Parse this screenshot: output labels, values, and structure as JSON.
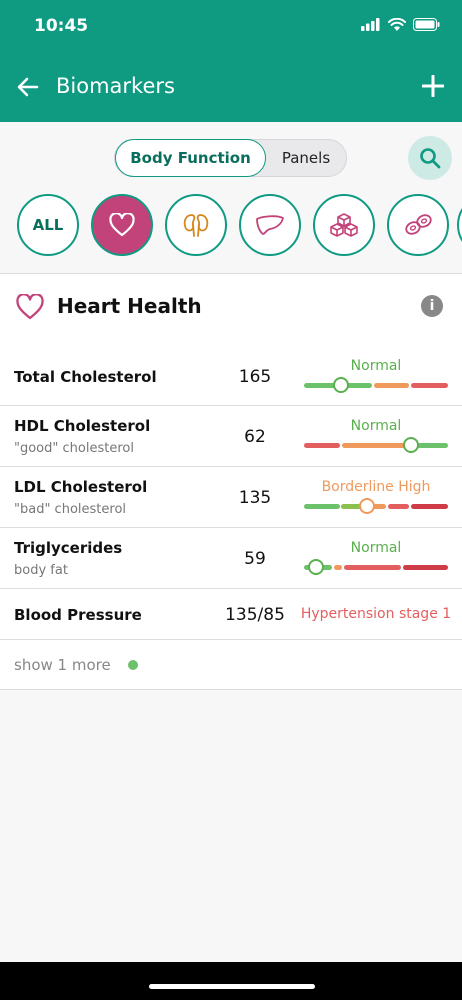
{
  "status_bar": {
    "time": "10:45"
  },
  "header": {
    "title": "Biomarkers"
  },
  "segment": {
    "active": "Body Function",
    "inactive": "Panels"
  },
  "categories": [
    {
      "label": "ALL"
    }
  ],
  "section": {
    "title": "Heart Health",
    "info_symbol": "i"
  },
  "colors": {
    "brand": "#0f9a82",
    "normal": "#5ab04f",
    "borderline": "#ef9a5c",
    "high": "#e35f5f",
    "selected_category": "#c2437a"
  },
  "biomarkers": [
    {
      "name": "Total Cholesterol",
      "sub": "",
      "value": "165",
      "status": "Normal",
      "status_color": "#5ab04f",
      "level": 0.26
    },
    {
      "name": "HDL Cholesterol",
      "sub": "\"good\" cholesterol",
      "value": "62",
      "status": "Normal",
      "status_color": "#5ab04f",
      "level": 0.74
    },
    {
      "name": "LDL Cholesterol",
      "sub": "\"bad\" cholesterol",
      "value": "135",
      "status": "Borderline High",
      "status_color": "#ef9a5c",
      "level": 0.44
    },
    {
      "name": "Triglycerides",
      "sub": "body fat",
      "value": "59",
      "status": "Normal",
      "status_color": "#5ab04f",
      "level": 0.08
    },
    {
      "name": "Blood Pressure",
      "sub": "",
      "value": "135/85",
      "status": "Hypertension stage 1",
      "status_color": "#e35f5f"
    }
  ],
  "show_more": {
    "label": "show 1 more"
  }
}
